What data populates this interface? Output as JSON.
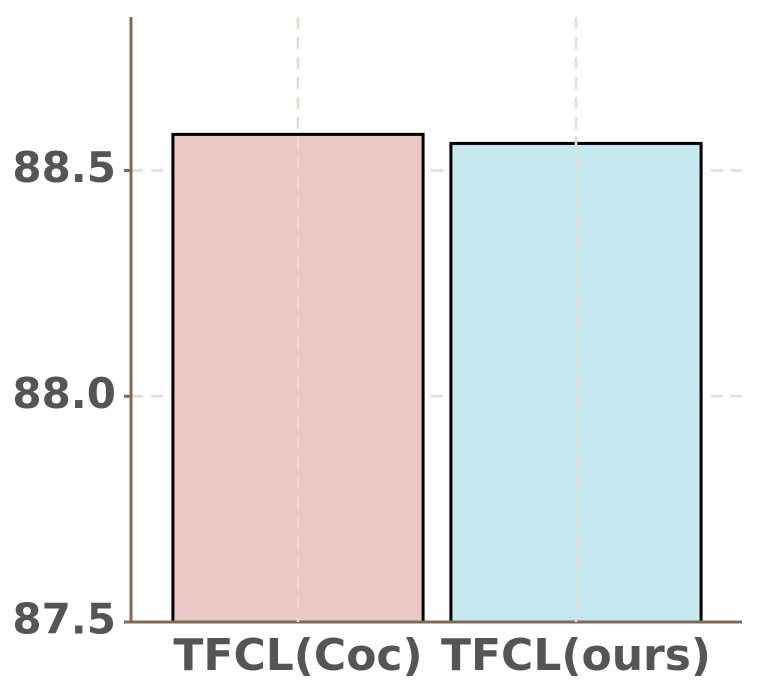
{
  "chart_data": {
    "type": "bar",
    "categories": [
      "TFCL(Coc)",
      "TFCL(ours)"
    ],
    "values": [
      88.58,
      88.56
    ],
    "colors": [
      "#ecc8c4",
      "#c5e7ef"
    ],
    "ylim": [
      87.5,
      88.84
    ],
    "yticks": [
      87.5,
      {
        "value": 88,
        "label": "88.0"
      },
      88.5
    ],
    "grid": true
  }
}
